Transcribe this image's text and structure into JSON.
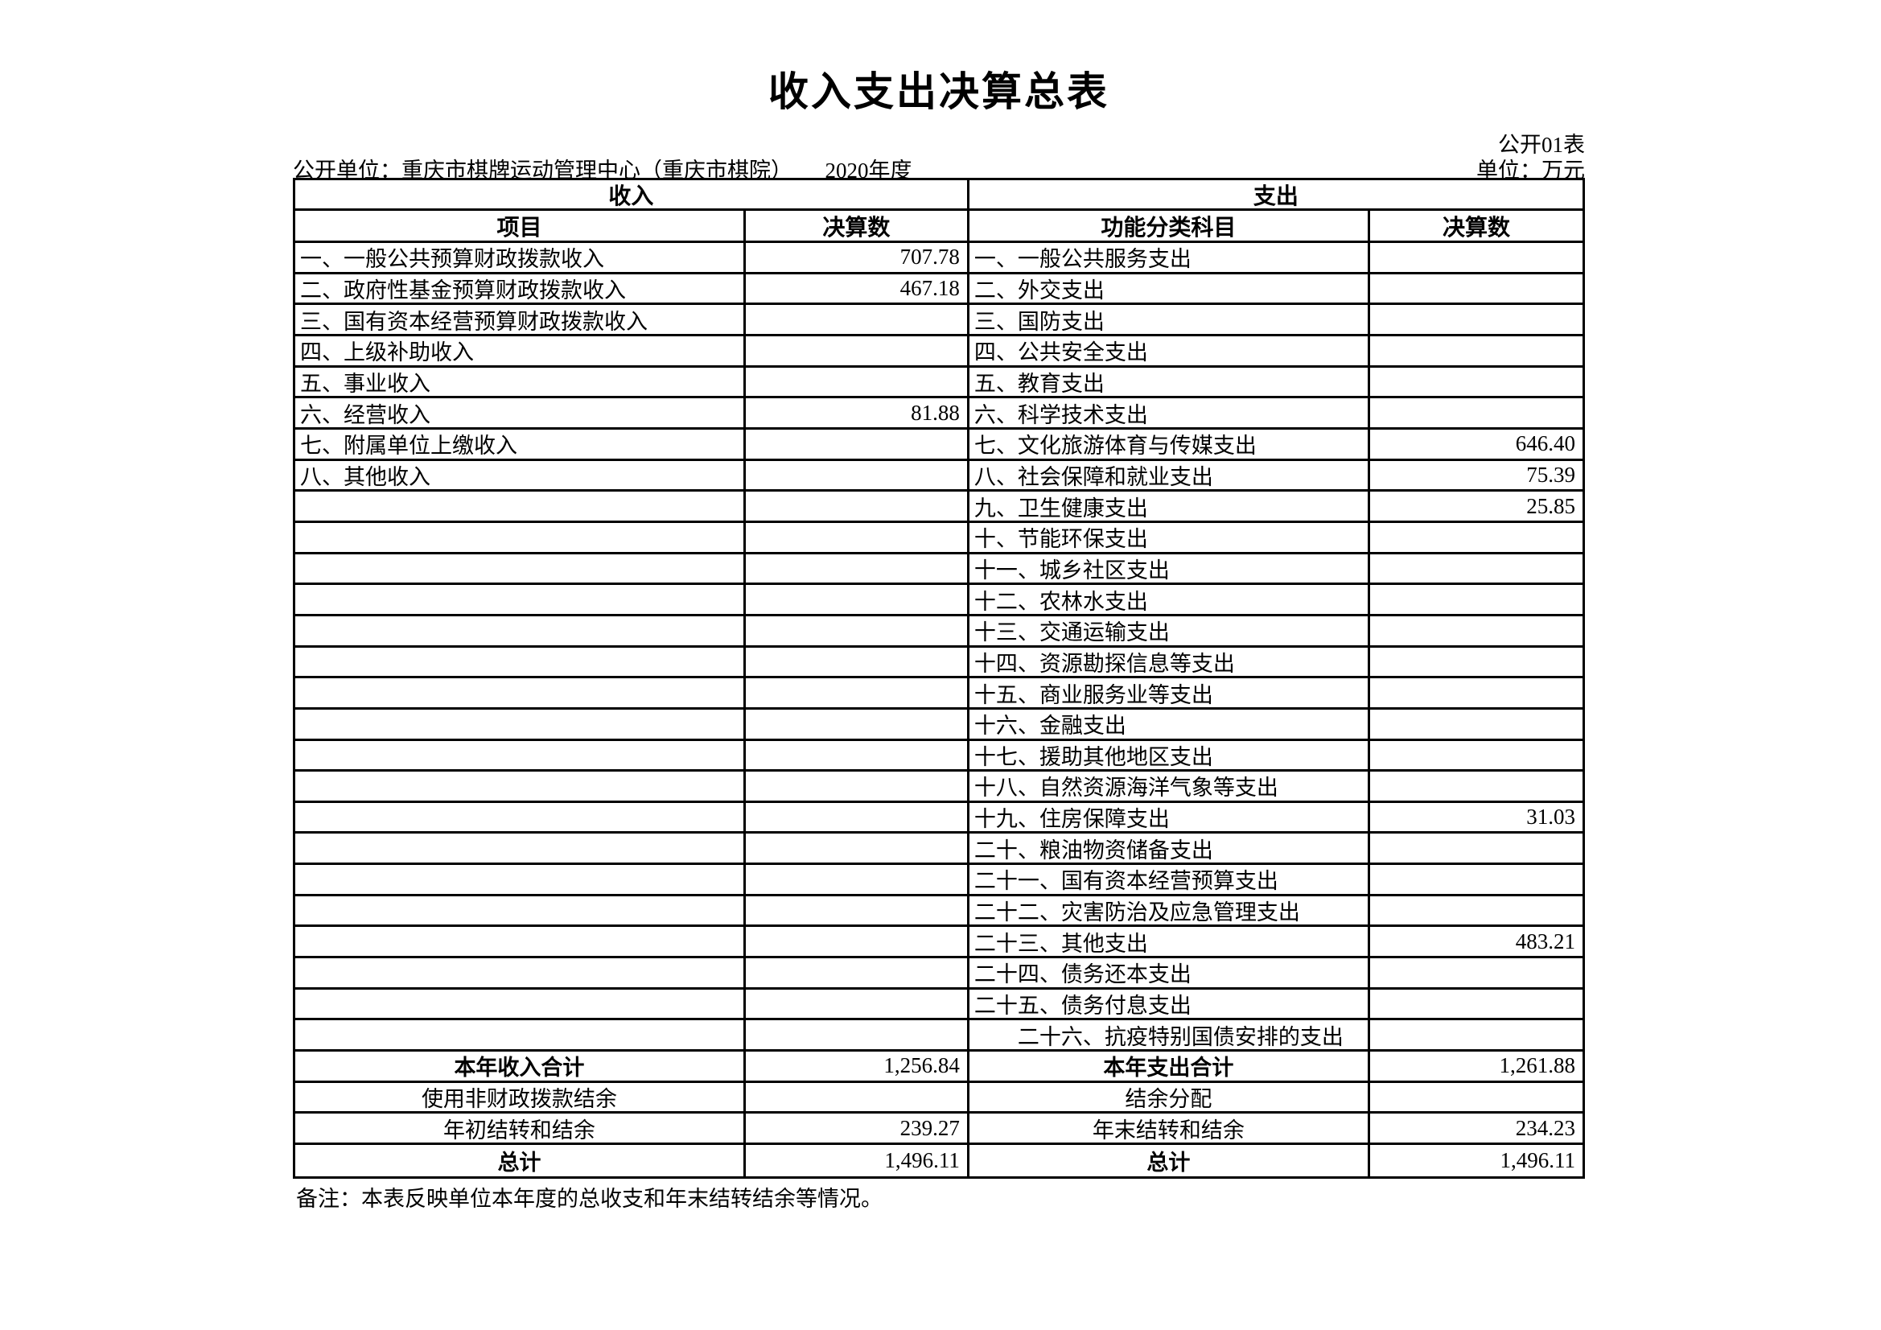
{
  "page": {
    "title": "收入支出决算总表",
    "table_code": "公开01表",
    "publisher_line": "公开单位：重庆市棋牌运动管理中心（重庆市棋院）　　2020年度",
    "unit_label": "单位：万元",
    "note": "备注：本表反映单位本年度的总收支和年末结转结余等情况。"
  },
  "table": {
    "income_header": "收入",
    "expense_header": "支出",
    "columns": {
      "income_item": "项目",
      "income_amount": "决算数",
      "expense_item": "功能分类科目",
      "expense_amount": "决算数"
    },
    "rows": [
      {
        "income_item": "一、一般公共预算财政拨款收入",
        "income_amount": "707.78",
        "expense_item": "一、一般公共服务支出",
        "expense_amount": ""
      },
      {
        "income_item": "二、政府性基金预算财政拨款收入",
        "income_amount": "467.18",
        "expense_item": "二、外交支出",
        "expense_amount": ""
      },
      {
        "income_item": "三、国有资本经营预算财政拨款收入",
        "income_amount": "",
        "expense_item": "三、国防支出",
        "expense_amount": ""
      },
      {
        "income_item": "四、上级补助收入",
        "income_amount": "",
        "expense_item": "四、公共安全支出",
        "expense_amount": ""
      },
      {
        "income_item": "五、事业收入",
        "income_amount": "",
        "expense_item": "五、教育支出",
        "expense_amount": ""
      },
      {
        "income_item": "六、经营收入",
        "income_amount": "81.88",
        "expense_item": "六、科学技术支出",
        "expense_amount": ""
      },
      {
        "income_item": "七、附属单位上缴收入",
        "income_amount": "",
        "expense_item": "七、文化旅游体育与传媒支出",
        "expense_amount": "646.40"
      },
      {
        "income_item": "八、其他收入",
        "income_amount": "",
        "expense_item": "八、社会保障和就业支出",
        "expense_amount": "75.39"
      },
      {
        "income_item": "",
        "income_amount": "",
        "expense_item": "九、卫生健康支出",
        "expense_amount": "25.85"
      },
      {
        "income_item": "",
        "income_amount": "",
        "expense_item": "十、节能环保支出",
        "expense_amount": ""
      },
      {
        "income_item": "",
        "income_amount": "",
        "expense_item": "十一、城乡社区支出",
        "expense_amount": ""
      },
      {
        "income_item": "",
        "income_amount": "",
        "expense_item": "十二、农林水支出",
        "expense_amount": ""
      },
      {
        "income_item": "",
        "income_amount": "",
        "expense_item": "十三、交通运输支出",
        "expense_amount": ""
      },
      {
        "income_item": "",
        "income_amount": "",
        "expense_item": "十四、资源勘探信息等支出",
        "expense_amount": ""
      },
      {
        "income_item": "",
        "income_amount": "",
        "expense_item": "十五、商业服务业等支出",
        "expense_amount": ""
      },
      {
        "income_item": "",
        "income_amount": "",
        "expense_item": "十六、金融支出",
        "expense_amount": ""
      },
      {
        "income_item": "",
        "income_amount": "",
        "expense_item": "十七、援助其他地区支出",
        "expense_amount": ""
      },
      {
        "income_item": "",
        "income_amount": "",
        "expense_item": "十八、自然资源海洋气象等支出",
        "expense_amount": ""
      },
      {
        "income_item": "",
        "income_amount": "",
        "expense_item": "十九、住房保障支出",
        "expense_amount": "31.03"
      },
      {
        "income_item": "",
        "income_amount": "",
        "expense_item": "二十、粮油物资储备支出",
        "expense_amount": ""
      },
      {
        "income_item": "",
        "income_amount": "",
        "expense_item": "二十一、国有资本经营预算支出",
        "expense_amount": ""
      },
      {
        "income_item": "",
        "income_amount": "",
        "expense_item": "二十二、灾害防治及应急管理支出",
        "expense_amount": ""
      },
      {
        "income_item": "",
        "income_amount": "",
        "expense_item": "二十三、其他支出",
        "expense_amount": "483.21"
      },
      {
        "income_item": "",
        "income_amount": "",
        "expense_item": "二十四、债务还本支出",
        "expense_amount": ""
      },
      {
        "income_item": "",
        "income_amount": "",
        "expense_item": "二十五、债务付息支出",
        "expense_amount": ""
      },
      {
        "income_item": "",
        "income_amount": "",
        "expense_item": "　　二十六、抗疫特别国债安排的支出",
        "expense_amount": ""
      }
    ],
    "footer_rows": [
      {
        "income_item": "本年收入合计",
        "income_amount": "1,256.84",
        "expense_item": "本年支出合计",
        "expense_amount": "1,261.88",
        "bold": true
      },
      {
        "income_item": "使用非财政拨款结余",
        "income_amount": "",
        "expense_item": "结余分配",
        "expense_amount": "",
        "bold": false
      },
      {
        "income_item": "年初结转和结余",
        "income_amount": "239.27",
        "expense_item": "年末结转和结余",
        "expense_amount": "234.23",
        "bold": false
      },
      {
        "income_item": "总计",
        "income_amount": "1,496.11",
        "expense_item": "总计",
        "expense_amount": "1,496.11",
        "bold": true
      }
    ]
  }
}
